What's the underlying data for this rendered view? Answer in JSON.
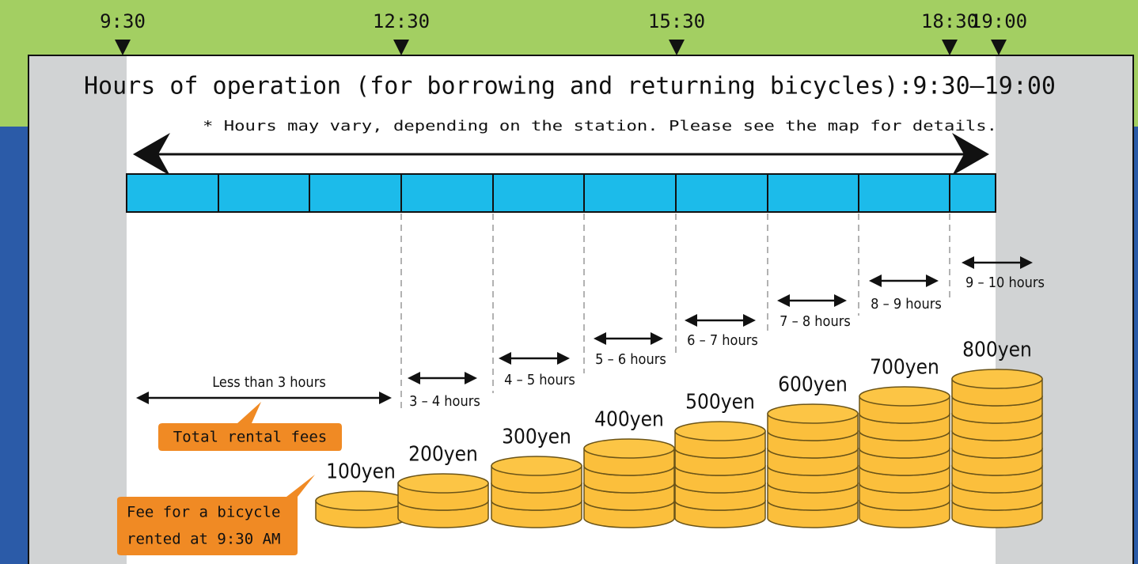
{
  "timeline": {
    "marks": [
      "9:30",
      "12:30",
      "15:30",
      "18:30",
      "19:00"
    ]
  },
  "title": "Hours of operation (for borrowing and returning bicycles):9:30–19:00",
  "note": "* Hours may vary, depending on the station. Please see the map for details.",
  "durations": [
    "Less than 3 hours",
    "3 – 4 hours",
    "4 – 5 hours",
    "5 – 6 hours",
    "6 – 7 hours",
    "7 – 8 hours",
    "8 – 9 hours",
    "9 – 10 hours"
  ],
  "fees": [
    "100yen",
    "200yen",
    "300yen",
    "400yen",
    "500yen",
    "600yen",
    "700yen",
    "800yen"
  ],
  "callouts": {
    "total": "Total rental fees",
    "fee_line1": "Fee for a bicycle",
    "fee_line2": "rented at 9:30 AM"
  }
}
